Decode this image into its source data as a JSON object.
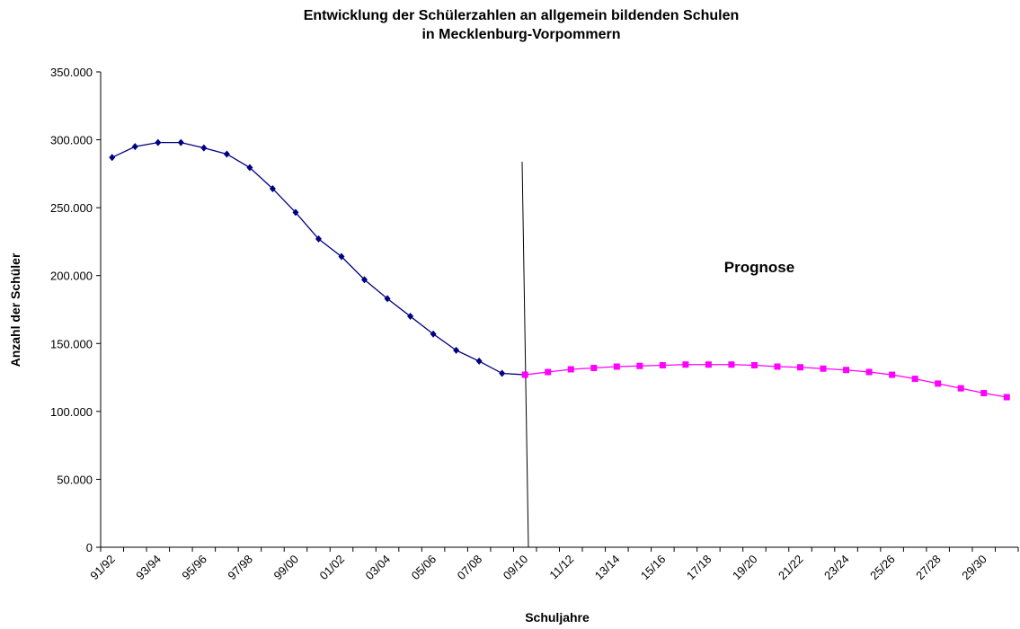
{
  "chart_data": {
    "type": "line",
    "title": "Entwicklung der Schülerzahlen an allgemein bildenden Schulen",
    "subtitle": "in Mecklenburg-Vorpommern",
    "x_label": "Schuljahre",
    "y_label": "Anzahl der Schüler",
    "annotation": "Prognose",
    "categories": [
      "91/92",
      null,
      "93/94",
      null,
      "95/96",
      null,
      "97/98",
      null,
      "99/00",
      null,
      "01/02",
      null,
      "03/04",
      null,
      "05/06",
      null,
      "07/08",
      null,
      "09/10",
      null,
      "11/12",
      null,
      "13/14",
      null,
      "15/16",
      null,
      "17/18",
      null,
      "19/20",
      null,
      "21/22",
      null,
      "23/24",
      null,
      "25/26",
      null,
      "27/28",
      null,
      "29/30",
      null
    ],
    "series": [
      {
        "color": "#000080",
        "marker": "diamond",
        "values": [
          287000,
          295000,
          298000,
          298000,
          294000,
          289500,
          279500,
          264000,
          246500,
          227000,
          214000,
          197000,
          183000,
          170000,
          157000,
          145000,
          137000,
          128000,
          127000,
          null,
          null,
          null,
          null,
          null,
          null,
          null,
          null,
          null,
          null,
          null,
          null,
          null,
          null,
          null,
          null,
          null,
          null,
          null,
          null,
          null
        ]
      },
      {
        "color": "#ff00ff",
        "marker": "square",
        "values": [
          null,
          null,
          null,
          null,
          null,
          null,
          null,
          null,
          null,
          null,
          null,
          null,
          null,
          null,
          null,
          null,
          null,
          null,
          127000,
          129000,
          131000,
          132000,
          133000,
          133500,
          134000,
          134500,
          134500,
          134500,
          134000,
          133000,
          132500,
          131500,
          130500,
          129000,
          127000,
          124000,
          120500,
          117000,
          113500,
          110500
        ]
      }
    ],
    "ylim": [
      0,
      350000
    ],
    "yticks": [
      0,
      {
        "value": 50000,
        "label": "50.000"
      },
      {
        "value": 100000,
        "label": "100.000"
      },
      {
        "value": 150000,
        "label": "150.000"
      },
      {
        "value": 200000,
        "label": "200.000"
      },
      {
        "value": 250000,
        "label": "250.000"
      },
      {
        "value": 300000,
        "label": "300.000"
      },
      {
        "value": 350000,
        "label": "350.000"
      }
    ],
    "grid": false
  }
}
